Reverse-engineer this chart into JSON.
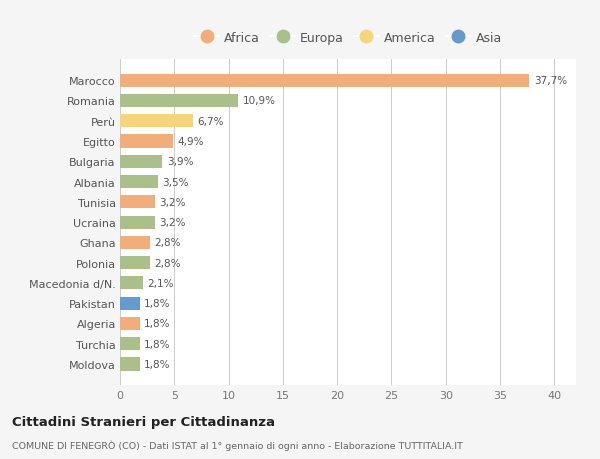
{
  "categories": [
    "Marocco",
    "Romania",
    "Perù",
    "Egitto",
    "Bulgaria",
    "Albania",
    "Tunisia",
    "Ucraina",
    "Ghana",
    "Polonia",
    "Macedonia d/N.",
    "Pakistan",
    "Algeria",
    "Turchia",
    "Moldova"
  ],
  "values": [
    37.7,
    10.9,
    6.7,
    4.9,
    3.9,
    3.5,
    3.2,
    3.2,
    2.8,
    2.8,
    2.1,
    1.8,
    1.8,
    1.8,
    1.8
  ],
  "labels": [
    "37,7%",
    "10,9%",
    "6,7%",
    "4,9%",
    "3,9%",
    "3,5%",
    "3,2%",
    "3,2%",
    "2,8%",
    "2,8%",
    "2,1%",
    "1,8%",
    "1,8%",
    "1,8%",
    "1,8%"
  ],
  "continents": [
    "Africa",
    "Europa",
    "America",
    "Africa",
    "Europa",
    "Europa",
    "Africa",
    "Europa",
    "Africa",
    "Europa",
    "Europa",
    "Asia",
    "Africa",
    "Europa",
    "Europa"
  ],
  "colors": {
    "Africa": "#F2AE7A",
    "Europa": "#AABF8A",
    "America": "#F5D47A",
    "Asia": "#6699CC"
  },
  "legend_order": [
    "Africa",
    "Europa",
    "America",
    "Asia"
  ],
  "title": "Cittadini Stranieri per Cittadinanza",
  "subtitle": "COMUNE DI FENEGRÒ (CO) - Dati ISTAT al 1° gennaio di ogni anno - Elaborazione TUTTITALIA.IT",
  "xlim": [
    0,
    42
  ],
  "xticks": [
    0,
    5,
    10,
    15,
    20,
    25,
    30,
    35,
    40
  ],
  "background_color": "#f5f5f5",
  "bar_background": "#ffffff"
}
